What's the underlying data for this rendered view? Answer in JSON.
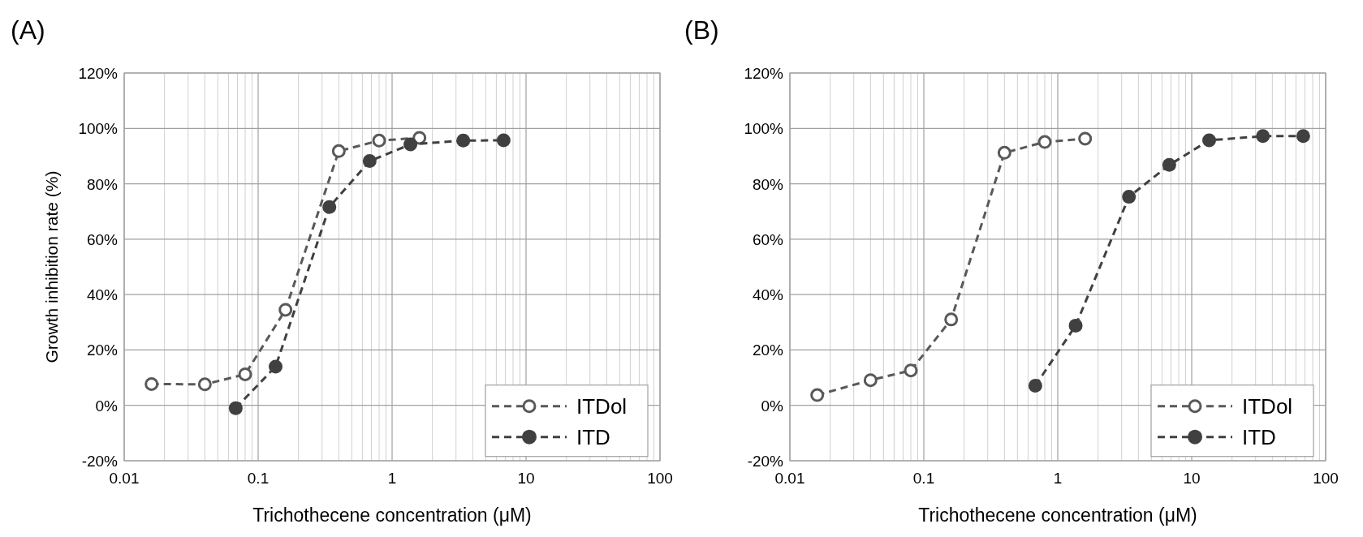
{
  "chart_data": [
    {
      "type": "line",
      "title": "(A)",
      "xlabel": "Trichothecene concentration (μM)",
      "ylabel": "Growth inhibition rate (%)",
      "log": "x",
      "xlim": [
        0.01,
        100
      ],
      "xticks": [
        0.01,
        0.1,
        1,
        10,
        100
      ],
      "ylim": [
        -20,
        120
      ],
      "yticks": [
        {
          "value": -20,
          "label": "-20%"
        },
        {
          "value": 0,
          "label": "0%"
        },
        {
          "value": 20,
          "label": "20%"
        },
        {
          "value": 40,
          "label": "40%"
        },
        {
          "value": 60,
          "label": "60%"
        },
        {
          "value": 80,
          "label": "80%"
        },
        {
          "value": 100,
          "label": "100%"
        },
        {
          "value": 120,
          "label": "120%"
        }
      ],
      "grid": true,
      "legend": "bottom right",
      "marker": "circle",
      "line_style": "dashed",
      "series": [
        {
          "name": "ITDol",
          "color": "#595959",
          "x": [
            0.016,
            0.04,
            0.08,
            0.16,
            0.4,
            0.8,
            1.6
          ],
          "values": [
            7.7,
            7.6,
            11.2,
            34.5,
            91.8,
            95.6,
            96.6
          ]
        },
        {
          "name": "ITD",
          "color": "#404040",
          "x": [
            0.068,
            0.135,
            0.34,
            0.68,
            1.37,
            3.4,
            6.8
          ],
          "values": [
            -1.0,
            14.0,
            71.6,
            88.2,
            94.2,
            95.6,
            95.7
          ]
        }
      ]
    },
    {
      "type": "line",
      "title": "(B)",
      "xlabel": "Trichothecene concentration (μM)",
      "log": "x",
      "xlim": [
        0.01,
        100
      ],
      "xticks": [
        0.01,
        0.1,
        1,
        10,
        100
      ],
      "ylim": [
        -20,
        120
      ],
      "yticks": [
        {
          "value": -20,
          "label": "-20%"
        },
        {
          "value": 0,
          "label": "0%"
        },
        {
          "value": 20,
          "label": "20%"
        },
        {
          "value": 40,
          "label": "40%"
        },
        {
          "value": 60,
          "label": "60%"
        },
        {
          "value": 80,
          "label": "80%"
        },
        {
          "value": 100,
          "label": "100%"
        },
        {
          "value": 120,
          "label": "120%"
        }
      ],
      "grid": true,
      "legend": "bottom right",
      "marker": "circle",
      "line_style": "dashed",
      "series": [
        {
          "name": "ITDol",
          "color": "#595959",
          "x": [
            0.016,
            0.04,
            0.08,
            0.16,
            0.4,
            0.8,
            1.6
          ],
          "values": [
            3.7,
            9.1,
            12.6,
            31.0,
            91.2,
            95.1,
            96.3
          ]
        },
        {
          "name": "ITD",
          "color": "#404040",
          "x": [
            0.68,
            1.36,
            3.4,
            6.8,
            13.5,
            34,
            68
          ],
          "values": [
            7.1,
            28.8,
            75.3,
            86.8,
            95.7,
            97.2,
            97.2
          ]
        }
      ]
    }
  ]
}
